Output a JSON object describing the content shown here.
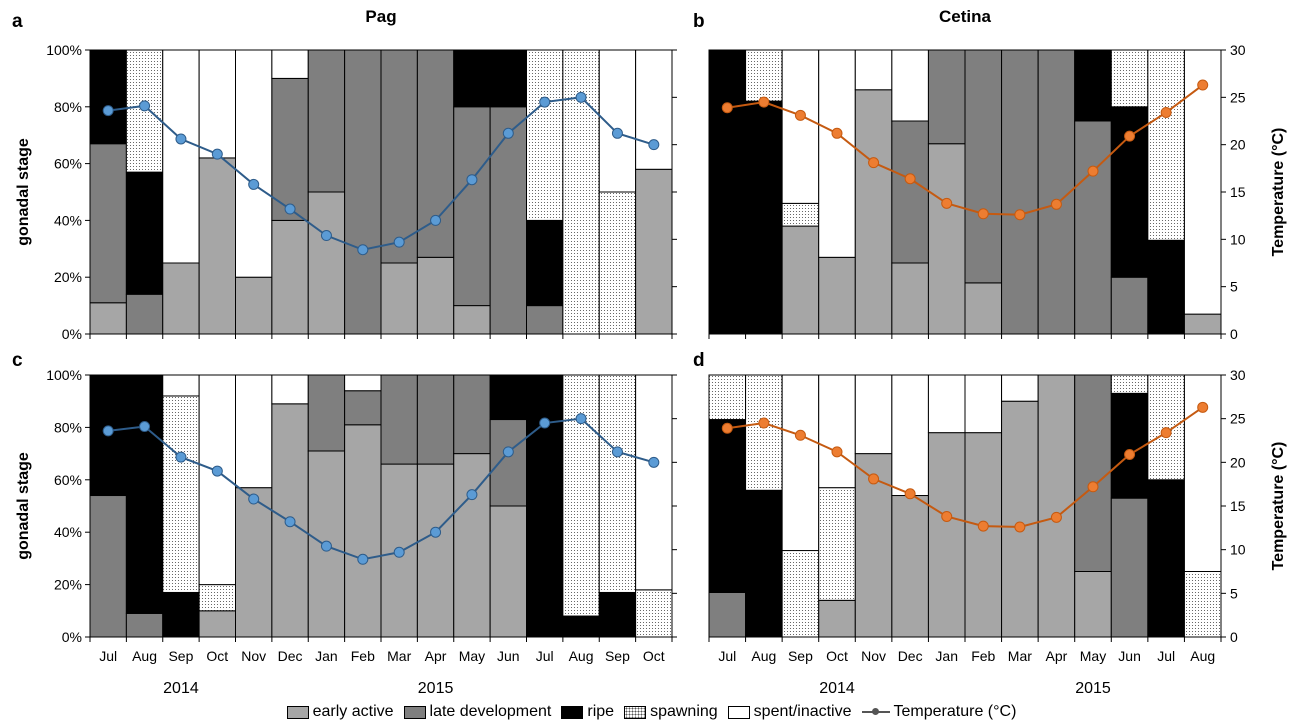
{
  "figure": {
    "legend": {
      "items": [
        {
          "key": "early",
          "label": "early active"
        },
        {
          "key": "late",
          "label": "late development"
        },
        {
          "key": "ripe",
          "label": "ripe"
        },
        {
          "key": "spawn",
          "label": "spawning"
        },
        {
          "key": "spent",
          "label": "spent/inactive"
        },
        {
          "key": "temp",
          "label": "Temperature (°C)"
        }
      ]
    },
    "colors": {
      "early": "#a6a6a6",
      "late": "#7f7f7f",
      "ripe": "#000000",
      "spent": "#ffffff",
      "pag_line": "#2e5c8a",
      "pag_marker": "#5b9bd5",
      "cetina_line": "#c55a11",
      "cetina_marker": "#ed7d31"
    }
  },
  "chart_data": [
    {
      "panel": "a",
      "title": "Pag",
      "type": "bar",
      "stacked": true,
      "ylabel": "gonadal stage",
      "y2label": "",
      "ylim": [
        0,
        100
      ],
      "y2lim": [
        0,
        30
      ],
      "yticks": [
        "0%",
        "20%",
        "40%",
        "60%",
        "80%",
        "100%"
      ],
      "y2ticks": [],
      "categories": [
        "Jul",
        "Aug",
        "Sep",
        "Oct",
        "Nov",
        "Dec",
        "Jan",
        "Feb",
        "Mar",
        "Apr",
        "May",
        "Jun",
        "Jul",
        "Aug",
        "Sep",
        "Oct"
      ],
      "show_x_labels": false,
      "year_labels": [],
      "series": [
        {
          "name": "early active",
          "key": "early",
          "values": [
            11,
            0,
            25,
            62,
            20,
            40,
            50,
            0,
            25,
            27,
            10,
            0,
            0,
            0,
            0,
            58
          ]
        },
        {
          "name": "late development",
          "key": "late",
          "values": [
            56,
            14,
            0,
            0,
            0,
            50,
            50,
            100,
            75,
            73,
            70,
            80,
            10,
            0,
            0,
            0
          ]
        },
        {
          "name": "ripe",
          "key": "ripe",
          "values": [
            33,
            43,
            0,
            0,
            0,
            0,
            0,
            0,
            0,
            0,
            20,
            20,
            30,
            0,
            0,
            0
          ]
        },
        {
          "name": "spawning",
          "key": "spawn",
          "values": [
            0,
            43,
            0,
            0,
            0,
            0,
            0,
            0,
            0,
            0,
            0,
            0,
            60,
            100,
            50,
            0
          ]
        },
        {
          "name": "spent/inactive",
          "key": "spent",
          "values": [
            0,
            0,
            75,
            38,
            80,
            10,
            0,
            0,
            0,
            0,
            0,
            0,
            0,
            0,
            50,
            42
          ]
        }
      ],
      "temperature": {
        "name": "Temperature (°C)",
        "values": [
          23.6,
          24.1,
          20.6,
          19.0,
          15.8,
          13.2,
          10.4,
          8.9,
          9.7,
          12.0,
          16.3,
          21.2,
          24.5,
          25.0,
          21.2,
          20.0
        ]
      }
    },
    {
      "panel": "b",
      "title": "Cetina",
      "type": "bar",
      "stacked": true,
      "ylabel": "",
      "y2label": "Temperature (°C)",
      "ylim": [
        0,
        100
      ],
      "y2lim": [
        0,
        30
      ],
      "yticks": [],
      "y2ticks": [
        "0",
        "5",
        "10",
        "15",
        "20",
        "25",
        "30"
      ],
      "categories": [
        "Jul",
        "Aug",
        "Sep",
        "Oct",
        "Nov",
        "Dec",
        "Jan",
        "Feb",
        "Mar",
        "Apr",
        "May",
        "Jun",
        "Jul",
        "Aug"
      ],
      "show_x_labels": false,
      "year_labels": [],
      "series": [
        {
          "name": "early active",
          "key": "early",
          "values": [
            0,
            0,
            38,
            27,
            86,
            25,
            67,
            18,
            0,
            0,
            0,
            0,
            0,
            7
          ]
        },
        {
          "name": "late development",
          "key": "late",
          "values": [
            0,
            0,
            0,
            0,
            0,
            50,
            33,
            82,
            100,
            100,
            75,
            20,
            0,
            0
          ]
        },
        {
          "name": "ripe",
          "key": "ripe",
          "values": [
            100,
            82,
            0,
            0,
            0,
            0,
            0,
            0,
            0,
            0,
            25,
            60,
            33,
            0
          ]
        },
        {
          "name": "spawning",
          "key": "spawn",
          "values": [
            0,
            18,
            8,
            0,
            0,
            0,
            0,
            0,
            0,
            0,
            0,
            20,
            67,
            0
          ]
        },
        {
          "name": "spent/inactive",
          "key": "spent",
          "values": [
            0,
            0,
            54,
            73,
            14,
            25,
            0,
            0,
            0,
            0,
            0,
            0,
            0,
            93
          ]
        }
      ],
      "temperature": {
        "name": "Temperature (°C)",
        "values": [
          23.9,
          24.5,
          23.1,
          21.2,
          18.1,
          16.4,
          13.8,
          12.7,
          12.6,
          13.7,
          17.2,
          20.9,
          23.4,
          26.3
        ]
      }
    },
    {
      "panel": "c",
      "title": "",
      "type": "bar",
      "stacked": true,
      "ylabel": "gonadal stage",
      "y2label": "",
      "ylim": [
        0,
        100
      ],
      "y2lim": [
        0,
        30
      ],
      "yticks": [
        "0%",
        "20%",
        "40%",
        "60%",
        "80%",
        "100%"
      ],
      "y2ticks": [],
      "categories": [
        "Jul",
        "Aug",
        "Sep",
        "Oct",
        "Nov",
        "Dec",
        "Jan",
        "Feb",
        "Mar",
        "Apr",
        "May",
        "Jun",
        "Jul",
        "Aug",
        "Sep",
        "Oct"
      ],
      "show_x_labels": true,
      "year_labels": [
        {
          "label": "2014",
          "index": 2.5
        },
        {
          "label": "2015",
          "index": 9.5
        }
      ],
      "series": [
        {
          "name": "early active",
          "key": "early",
          "values": [
            0,
            0,
            0,
            10,
            57,
            89,
            71,
            81,
            66,
            66,
            70,
            50,
            0,
            0,
            0,
            0
          ]
        },
        {
          "name": "late development",
          "key": "late",
          "values": [
            54,
            9,
            0,
            0,
            0,
            0,
            29,
            13,
            34,
            34,
            30,
            33,
            0,
            0,
            0,
            0
          ]
        },
        {
          "name": "ripe",
          "key": "ripe",
          "values": [
            46,
            91,
            17,
            0,
            0,
            0,
            0,
            0,
            0,
            0,
            0,
            17,
            100,
            8,
            17,
            0
          ]
        },
        {
          "name": "spawning",
          "key": "spawn",
          "values": [
            0,
            0,
            75,
            10,
            0,
            0,
            0,
            0,
            0,
            0,
            0,
            0,
            0,
            92,
            83,
            18
          ]
        },
        {
          "name": "spent/inactive",
          "key": "spent",
          "values": [
            0,
            0,
            8,
            80,
            43,
            11,
            0,
            6,
            0,
            0,
            0,
            0,
            0,
            0,
            0,
            82
          ]
        }
      ],
      "temperature": {
        "name": "Temperature (°C)",
        "values": [
          23.6,
          24.1,
          20.6,
          19.0,
          15.8,
          13.2,
          10.4,
          8.9,
          9.7,
          12.0,
          16.3,
          21.2,
          24.5,
          25.0,
          21.2,
          20.0
        ]
      }
    },
    {
      "panel": "d",
      "title": "",
      "type": "bar",
      "stacked": true,
      "ylabel": "",
      "y2label": "Temperature (°C)",
      "ylim": [
        0,
        100
      ],
      "y2lim": [
        0,
        30
      ],
      "yticks": [],
      "y2ticks": [
        "0",
        "5",
        "10",
        "15",
        "20",
        "25",
        "30"
      ],
      "categories": [
        "Jul",
        "Aug",
        "Sep",
        "Oct",
        "Nov",
        "Dec",
        "Jan",
        "Feb",
        "Mar",
        "Apr",
        "May",
        "Jun",
        "Jul",
        "Aug"
      ],
      "show_x_labels": true,
      "year_labels": [
        {
          "label": "2014",
          "index": 3.5
        },
        {
          "label": "2015",
          "index": 10.5
        }
      ],
      "series": [
        {
          "name": "early active",
          "key": "early",
          "values": [
            0,
            0,
            0,
            14,
            70,
            54,
            78,
            78,
            90,
            100,
            25,
            0,
            0,
            0
          ]
        },
        {
          "name": "late development",
          "key": "late",
          "values": [
            17,
            0,
            0,
            0,
            0,
            0,
            0,
            0,
            0,
            0,
            75,
            53,
            0,
            0
          ]
        },
        {
          "name": "ripe",
          "key": "ripe",
          "values": [
            66,
            56,
            0,
            0,
            0,
            0,
            0,
            0,
            0,
            0,
            0,
            40,
            60,
            0
          ]
        },
        {
          "name": "spawning",
          "key": "spawn",
          "values": [
            17,
            44,
            33,
            43,
            0,
            0,
            0,
            0,
            0,
            0,
            0,
            7,
            40,
            25
          ]
        },
        {
          "name": "spent/inactive",
          "key": "spent",
          "values": [
            0,
            0,
            67,
            43,
            30,
            46,
            22,
            22,
            10,
            0,
            0,
            0,
            0,
            75
          ]
        }
      ],
      "temperature": {
        "name": "Temperature (°C)",
        "values": [
          23.9,
          24.5,
          23.1,
          21.2,
          18.1,
          16.4,
          13.8,
          12.7,
          12.6,
          13.7,
          17.2,
          20.9,
          23.4,
          26.3
        ]
      }
    }
  ]
}
